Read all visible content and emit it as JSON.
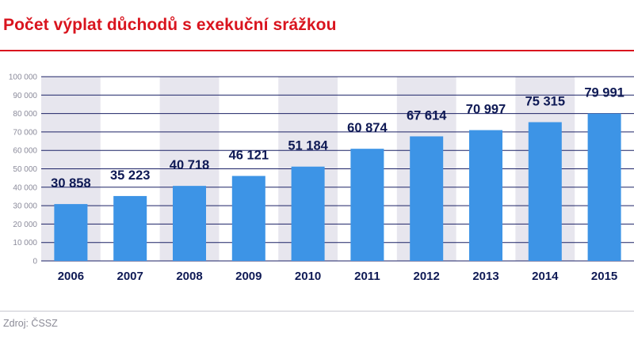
{
  "title": "Počet výplat důchodů s exekuční srážkou",
  "source": "Zdroj: ČSSZ",
  "colors": {
    "title": "#d9141e",
    "bar": "#3d94e6",
    "band": "#e7e6ee",
    "text": "#0f1a55",
    "grid": "#1c2266"
  },
  "chart_data": {
    "type": "bar",
    "title": "Počet výplat důchodů s exekuční srážkou",
    "xlabel": "",
    "ylabel": "",
    "categories": [
      "2006",
      "2007",
      "2008",
      "2009",
      "2010",
      "2011",
      "2012",
      "2013",
      "2014",
      "2015"
    ],
    "values": [
      30858,
      35223,
      40718,
      46121,
      51184,
      60874,
      67614,
      70997,
      75315,
      79991
    ],
    "value_labels": [
      "30 858",
      "35 223",
      "40 718",
      "46 121",
      "51 184",
      "60 874",
      "67 614",
      "70 997",
      "75 315",
      "79 991"
    ],
    "ylim": [
      0,
      100000
    ],
    "yticks": [
      0,
      10000,
      20000,
      30000,
      40000,
      50000,
      60000,
      70000,
      80000,
      90000,
      100000
    ],
    "ytick_labels": [
      "0",
      "10 000",
      "20 000",
      "30 000",
      "40 000",
      "50 000",
      "60 000",
      "70 000",
      "80 000",
      "90 000",
      "100 000"
    ],
    "grid": true,
    "legend": "none"
  }
}
